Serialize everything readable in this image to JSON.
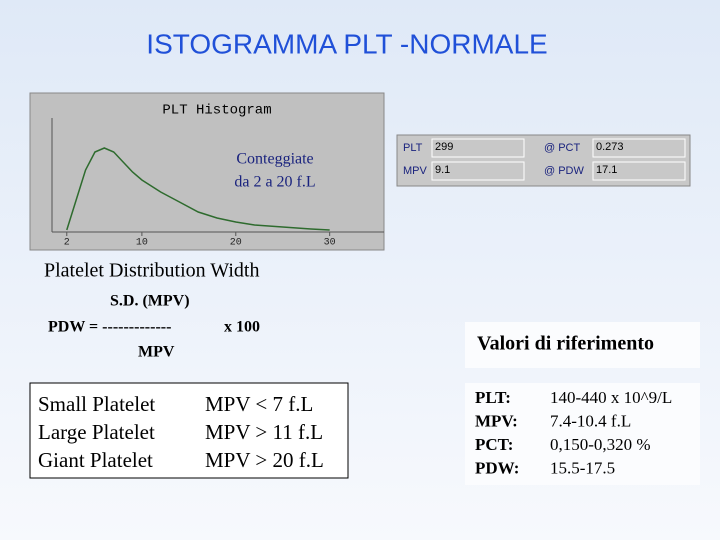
{
  "title": "ISTOGRAMMA PLT -NORMALE",
  "chart_data": {
    "type": "line",
    "title": "PLT Histogram",
    "annotations": [
      "Conteggiate",
      "da 2 a 20 f.L"
    ],
    "x": [
      2,
      3,
      4,
      5,
      6,
      7,
      8,
      9,
      10,
      12,
      14,
      16,
      18,
      20,
      22,
      25,
      28,
      30
    ],
    "values": [
      0,
      30,
      60,
      78,
      82,
      78,
      68,
      58,
      50,
      38,
      28,
      18,
      12,
      8,
      5,
      3,
      1,
      0
    ],
    "color": "#2e6b2e",
    "xlim": [
      0,
      36
    ],
    "xticks": [
      2,
      10,
      20,
      30
    ],
    "ylim": [
      0,
      100
    ]
  },
  "instrument": {
    "rows": [
      [
        "PLT",
        "299",
        "@ PCT",
        "0.273"
      ],
      [
        "MPV",
        "9.1",
        "@ PDW",
        "17.1"
      ]
    ]
  },
  "pdw": {
    "heading": "Platelet Distribution Width",
    "numerator": "S.D. (MPV)",
    "lhs": "PDW = -------------",
    "factor": "x 100",
    "denominator": "MPV"
  },
  "sizes": {
    "rows": [
      [
        "Small Platelet",
        "MPV <  7 f.L"
      ],
      [
        "Large Platelet",
        "MPV > 11 f.L"
      ],
      [
        "Giant Platelet",
        "MPV > 20 f.L"
      ]
    ]
  },
  "reference": {
    "heading": "Valori di riferimento",
    "rows": [
      [
        "PLT:",
        "140-440 x 10^9/L"
      ],
      [
        "MPV:",
        "7.4-10.4 f.L"
      ],
      [
        "PCT:",
        "0,150-0,320 %"
      ],
      [
        "PDW:",
        "15.5-17.5"
      ]
    ]
  }
}
